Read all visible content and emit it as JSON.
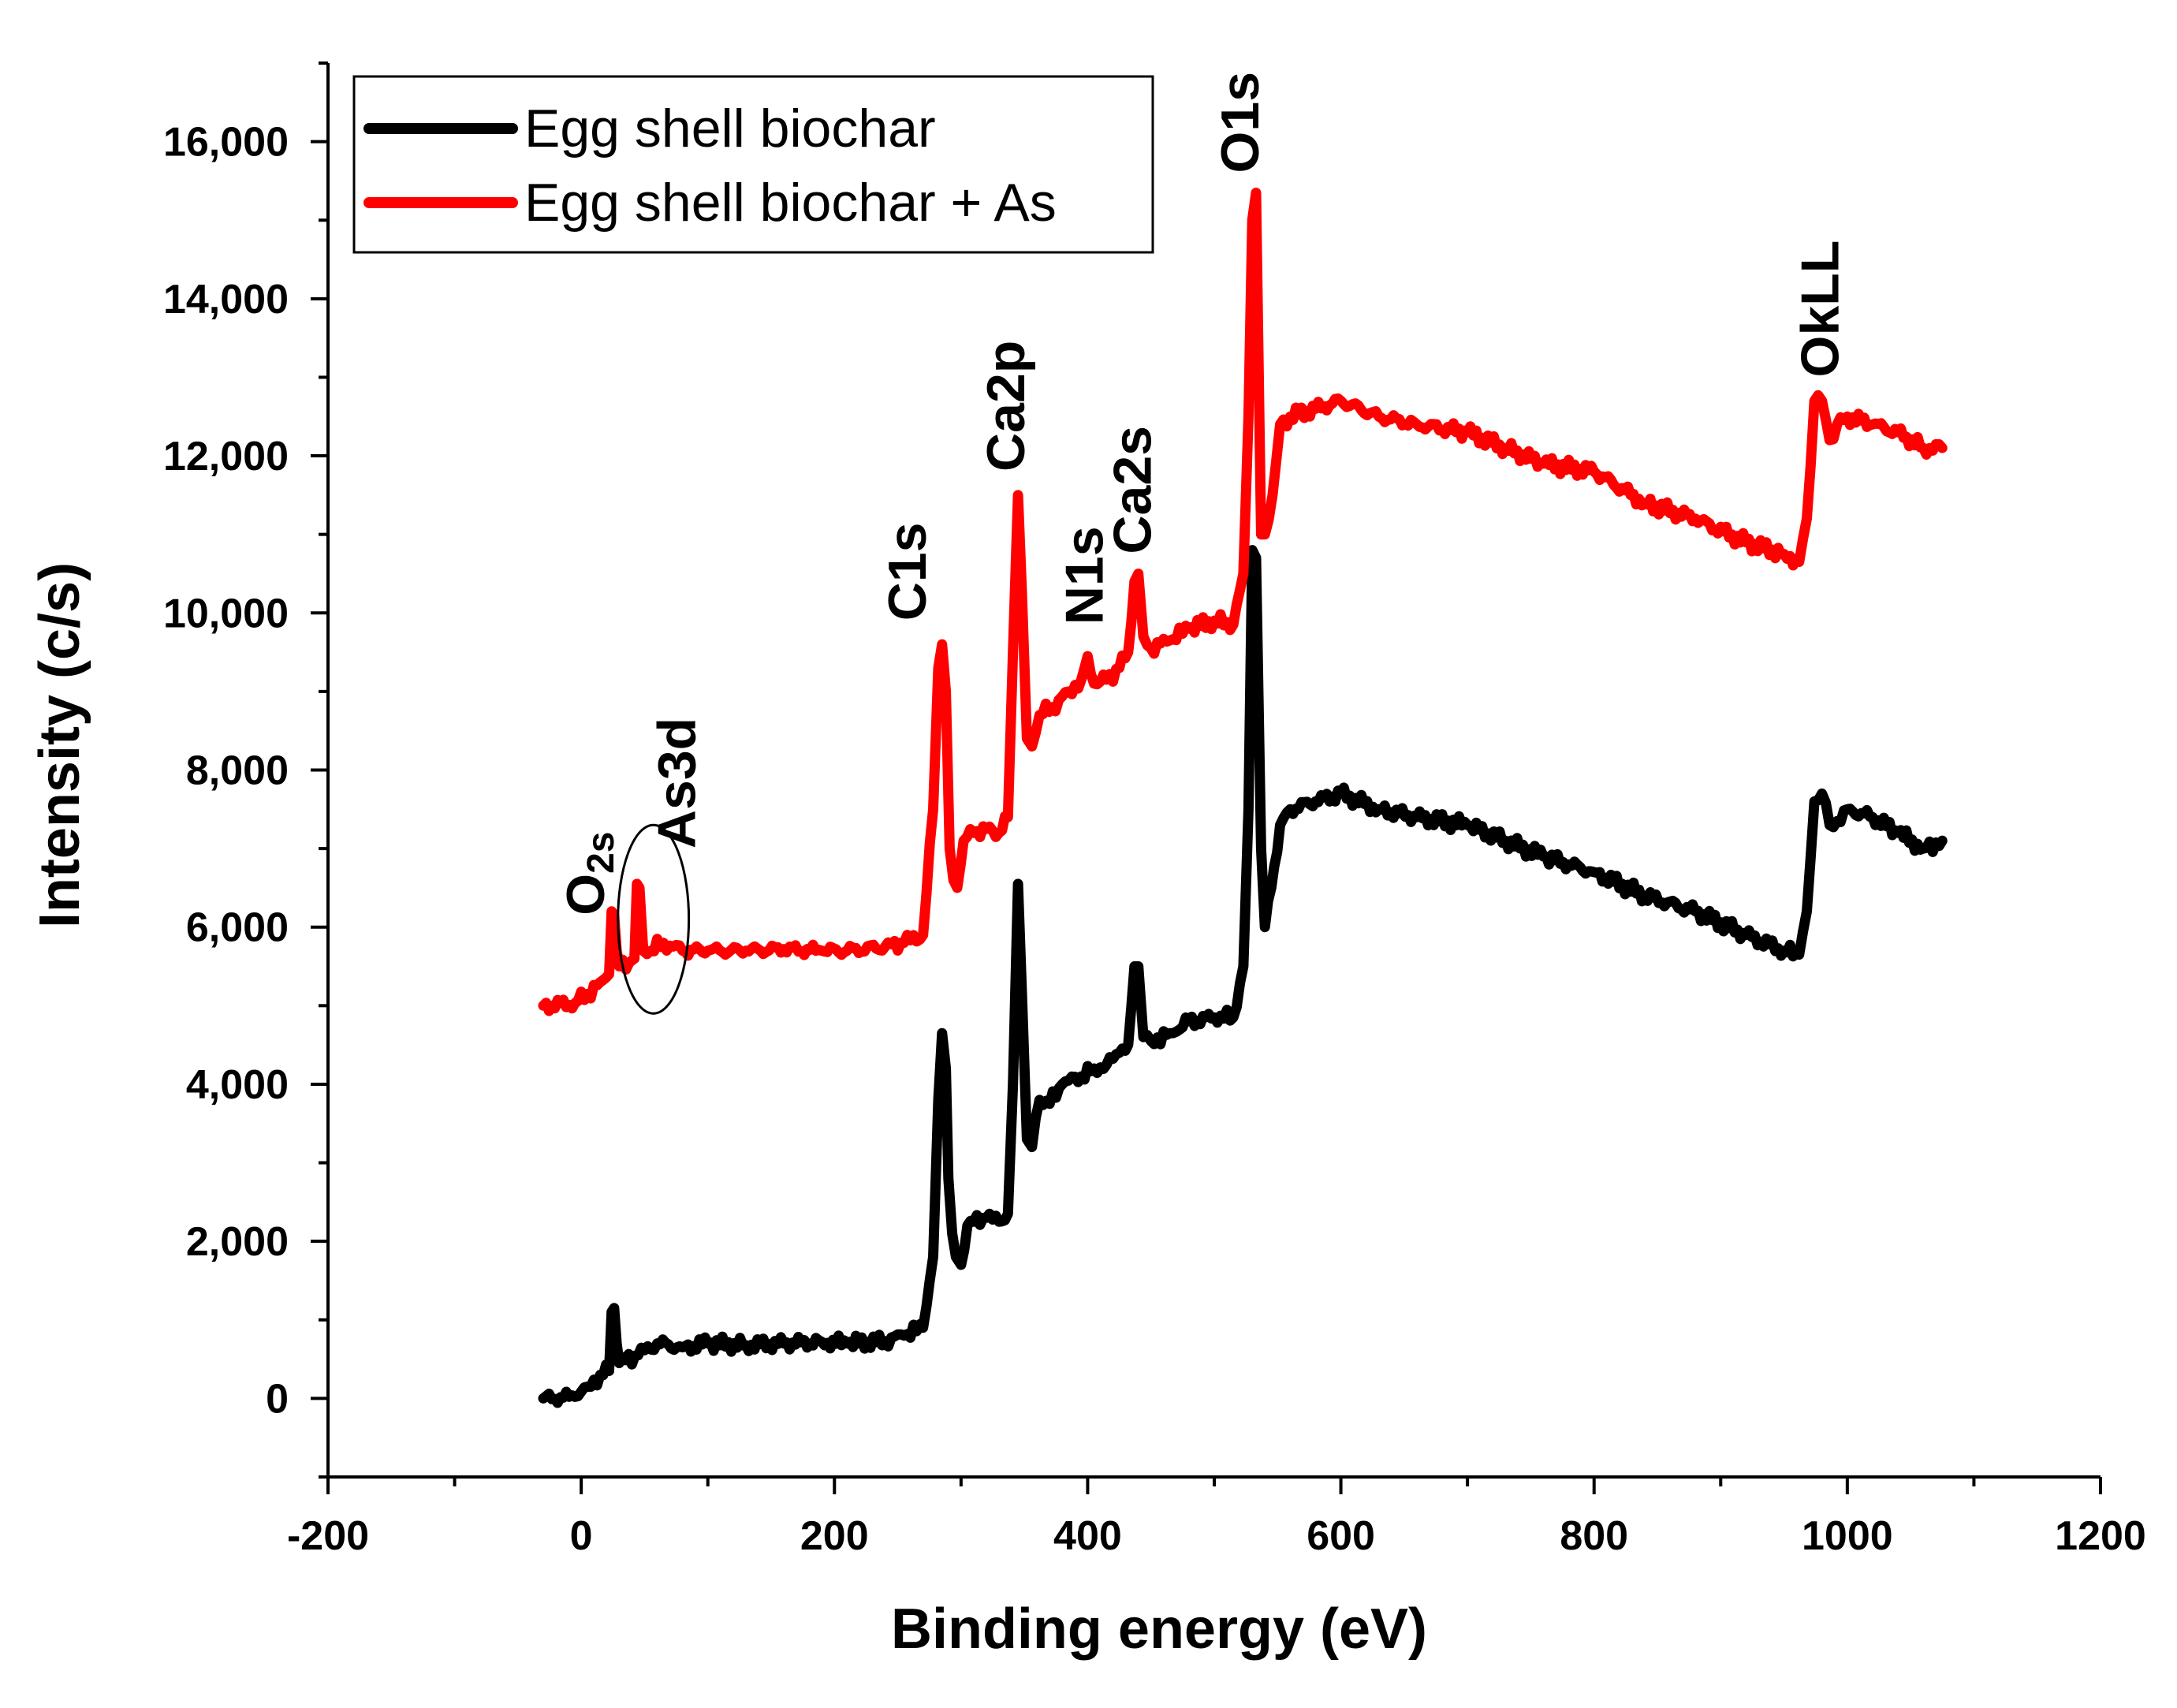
{
  "chart_data": {
    "type": "line",
    "title": "",
    "xlabel": "Binding energy (eV)",
    "ylabel": "Intensity (c/s)",
    "xlim": [
      -200,
      1200
    ],
    "ylim": [
      -1000,
      17000
    ],
    "x_ticks": [
      -200,
      0,
      200,
      400,
      600,
      800,
      1000,
      1200
    ],
    "x_tick_labels": [
      "-200",
      "0",
      "200",
      "400",
      "600",
      "800",
      "1000",
      "1200"
    ],
    "y_ticks": [
      0,
      2000,
      4000,
      6000,
      8000,
      10000,
      12000,
      14000,
      16000
    ],
    "y_tick_labels": [
      "0",
      "2,000",
      "4,000",
      "6,000",
      "8,000",
      "10,000",
      "12,000",
      "14,000",
      "16,000"
    ],
    "grid": false,
    "legend_position": "top-left",
    "series": [
      {
        "name": "Egg shell biochar",
        "color": "#000000",
        "points": [
          [
            -30,
            0
          ],
          [
            -5,
            20
          ],
          [
            5,
            150
          ],
          [
            15,
            300
          ],
          [
            22,
            350
          ],
          [
            24,
            1100
          ],
          [
            26,
            1150
          ],
          [
            28,
            700
          ],
          [
            30,
            450
          ],
          [
            45,
            550
          ],
          [
            60,
            700
          ],
          [
            80,
            650
          ],
          [
            100,
            700
          ],
          [
            130,
            680
          ],
          [
            160,
            700
          ],
          [
            190,
            720
          ],
          [
            210,
            700
          ],
          [
            240,
            730
          ],
          [
            255,
            800
          ],
          [
            270,
            900
          ],
          [
            278,
            1800
          ],
          [
            282,
            3800
          ],
          [
            285,
            4650
          ],
          [
            288,
            4200
          ],
          [
            290,
            2800
          ],
          [
            293,
            2100
          ],
          [
            296,
            1800
          ],
          [
            300,
            1700
          ],
          [
            305,
            2200
          ],
          [
            310,
            2250
          ],
          [
            320,
            2300
          ],
          [
            330,
            2250
          ],
          [
            337,
            2350
          ],
          [
            341,
            4000
          ],
          [
            345,
            6550
          ],
          [
            348,
            5200
          ],
          [
            352,
            3300
          ],
          [
            356,
            3200
          ],
          [
            362,
            3800
          ],
          [
            370,
            3750
          ],
          [
            380,
            4000
          ],
          [
            395,
            4100
          ],
          [
            405,
            4200
          ],
          [
            415,
            4250
          ],
          [
            425,
            4400
          ],
          [
            432,
            4500
          ],
          [
            437,
            5500
          ],
          [
            440,
            5500
          ],
          [
            444,
            4600
          ],
          [
            450,
            4550
          ],
          [
            465,
            4650
          ],
          [
            480,
            4800
          ],
          [
            500,
            4850
          ],
          [
            515,
            4850
          ],
          [
            523,
            5500
          ],
          [
            527,
            7500
          ],
          [
            530,
            10800
          ],
          [
            533,
            10700
          ],
          [
            537,
            7000
          ],
          [
            540,
            6000
          ],
          [
            545,
            6500
          ],
          [
            552,
            7300
          ],
          [
            560,
            7500
          ],
          [
            580,
            7600
          ],
          [
            600,
            7700
          ],
          [
            630,
            7500
          ],
          [
            660,
            7400
          ],
          [
            700,
            7300
          ],
          [
            730,
            7100
          ],
          [
            760,
            6900
          ],
          [
            800,
            6700
          ],
          [
            840,
            6400
          ],
          [
            880,
            6200
          ],
          [
            920,
            5900
          ],
          [
            950,
            5700
          ],
          [
            962,
            5650
          ],
          [
            968,
            6200
          ],
          [
            974,
            7600
          ],
          [
            980,
            7700
          ],
          [
            986,
            7300
          ],
          [
            992,
            7350
          ],
          [
            1000,
            7500
          ],
          [
            1020,
            7400
          ],
          [
            1040,
            7200
          ],
          [
            1060,
            7000
          ],
          [
            1075,
            7100
          ]
        ]
      },
      {
        "name": "Egg shell biochar + As",
        "color": "#ff0000",
        "points": [
          [
            -30,
            5000
          ],
          [
            -5,
            5030
          ],
          [
            5,
            5150
          ],
          [
            15,
            5300
          ],
          [
            22,
            5400
          ],
          [
            24,
            6200
          ],
          [
            26,
            6150
          ],
          [
            28,
            5700
          ],
          [
            30,
            5500
          ],
          [
            38,
            5550
          ],
          [
            42,
            5600
          ],
          [
            44,
            6550
          ],
          [
            46,
            6500
          ],
          [
            49,
            5700
          ],
          [
            55,
            5700
          ],
          [
            65,
            5800
          ],
          [
            80,
            5700
          ],
          [
            100,
            5700
          ],
          [
            130,
            5700
          ],
          [
            160,
            5720
          ],
          [
            190,
            5700
          ],
          [
            210,
            5700
          ],
          [
            240,
            5750
          ],
          [
            255,
            5800
          ],
          [
            270,
            5900
          ],
          [
            278,
            7500
          ],
          [
            282,
            9300
          ],
          [
            285,
            9600
          ],
          [
            288,
            9000
          ],
          [
            291,
            7000
          ],
          [
            294,
            6600
          ],
          [
            297,
            6500
          ],
          [
            302,
            7100
          ],
          [
            310,
            7200
          ],
          [
            320,
            7250
          ],
          [
            330,
            7200
          ],
          [
            337,
            7400
          ],
          [
            341,
            9500
          ],
          [
            345,
            11500
          ],
          [
            348,
            10300
          ],
          [
            352,
            8400
          ],
          [
            356,
            8300
          ],
          [
            362,
            8700
          ],
          [
            372,
            8800
          ],
          [
            385,
            9000
          ],
          [
            395,
            9150
          ],
          [
            400,
            9450
          ],
          [
            405,
            9100
          ],
          [
            415,
            9150
          ],
          [
            425,
            9300
          ],
          [
            432,
            9500
          ],
          [
            437,
            10400
          ],
          [
            440,
            10500
          ],
          [
            444,
            9700
          ],
          [
            450,
            9550
          ],
          [
            465,
            9650
          ],
          [
            480,
            9800
          ],
          [
            500,
            9900
          ],
          [
            515,
            9850
          ],
          [
            523,
            10500
          ],
          [
            527,
            12500
          ],
          [
            530,
            15000
          ],
          [
            533,
            15350
          ],
          [
            537,
            11000
          ],
          [
            540,
            11000
          ],
          [
            546,
            11500
          ],
          [
            552,
            12400
          ],
          [
            560,
            12500
          ],
          [
            580,
            12600
          ],
          [
            600,
            12700
          ],
          [
            630,
            12500
          ],
          [
            660,
            12400
          ],
          [
            700,
            12300
          ],
          [
            730,
            12100
          ],
          [
            760,
            11900
          ],
          [
            800,
            11800
          ],
          [
            840,
            11400
          ],
          [
            880,
            11200
          ],
          [
            920,
            10900
          ],
          [
            950,
            10750
          ],
          [
            962,
            10650
          ],
          [
            968,
            11200
          ],
          [
            974,
            12700
          ],
          [
            980,
            12700
          ],
          [
            986,
            12200
          ],
          [
            992,
            12400
          ],
          [
            1000,
            12500
          ],
          [
            1020,
            12400
          ],
          [
            1040,
            12300
          ],
          [
            1060,
            12100
          ],
          [
            1075,
            12100
          ]
        ]
      }
    ],
    "annotations": [
      {
        "name": "o2s",
        "text": "O",
        "sub": "2s",
        "x": 18,
        "y": 6150
      },
      {
        "name": "as3d",
        "text": "As3d",
        "x": 90,
        "y": 7000
      },
      {
        "name": "c1s",
        "text": "C1s",
        "x": 272,
        "y": 9900
      },
      {
        "name": "ca2p",
        "text": "Ca2p",
        "x": 350,
        "y": 11800
      },
      {
        "name": "n1s",
        "text": "N1s",
        "x": 412,
        "y": 9850
      },
      {
        "name": "ca2s",
        "text": "Ca2s",
        "x": 450,
        "y": 10750
      },
      {
        "name": "o1s",
        "text": "O1s",
        "x": 535,
        "y": 15600
      },
      {
        "name": "okll",
        "text": "OkLL",
        "x": 993,
        "y": 13000
      }
    ],
    "highlight_ellipse": {
      "label": "as3d-region",
      "cx": 57,
      "cy": 6100,
      "rx": 28,
      "ry": 1200
    }
  }
}
